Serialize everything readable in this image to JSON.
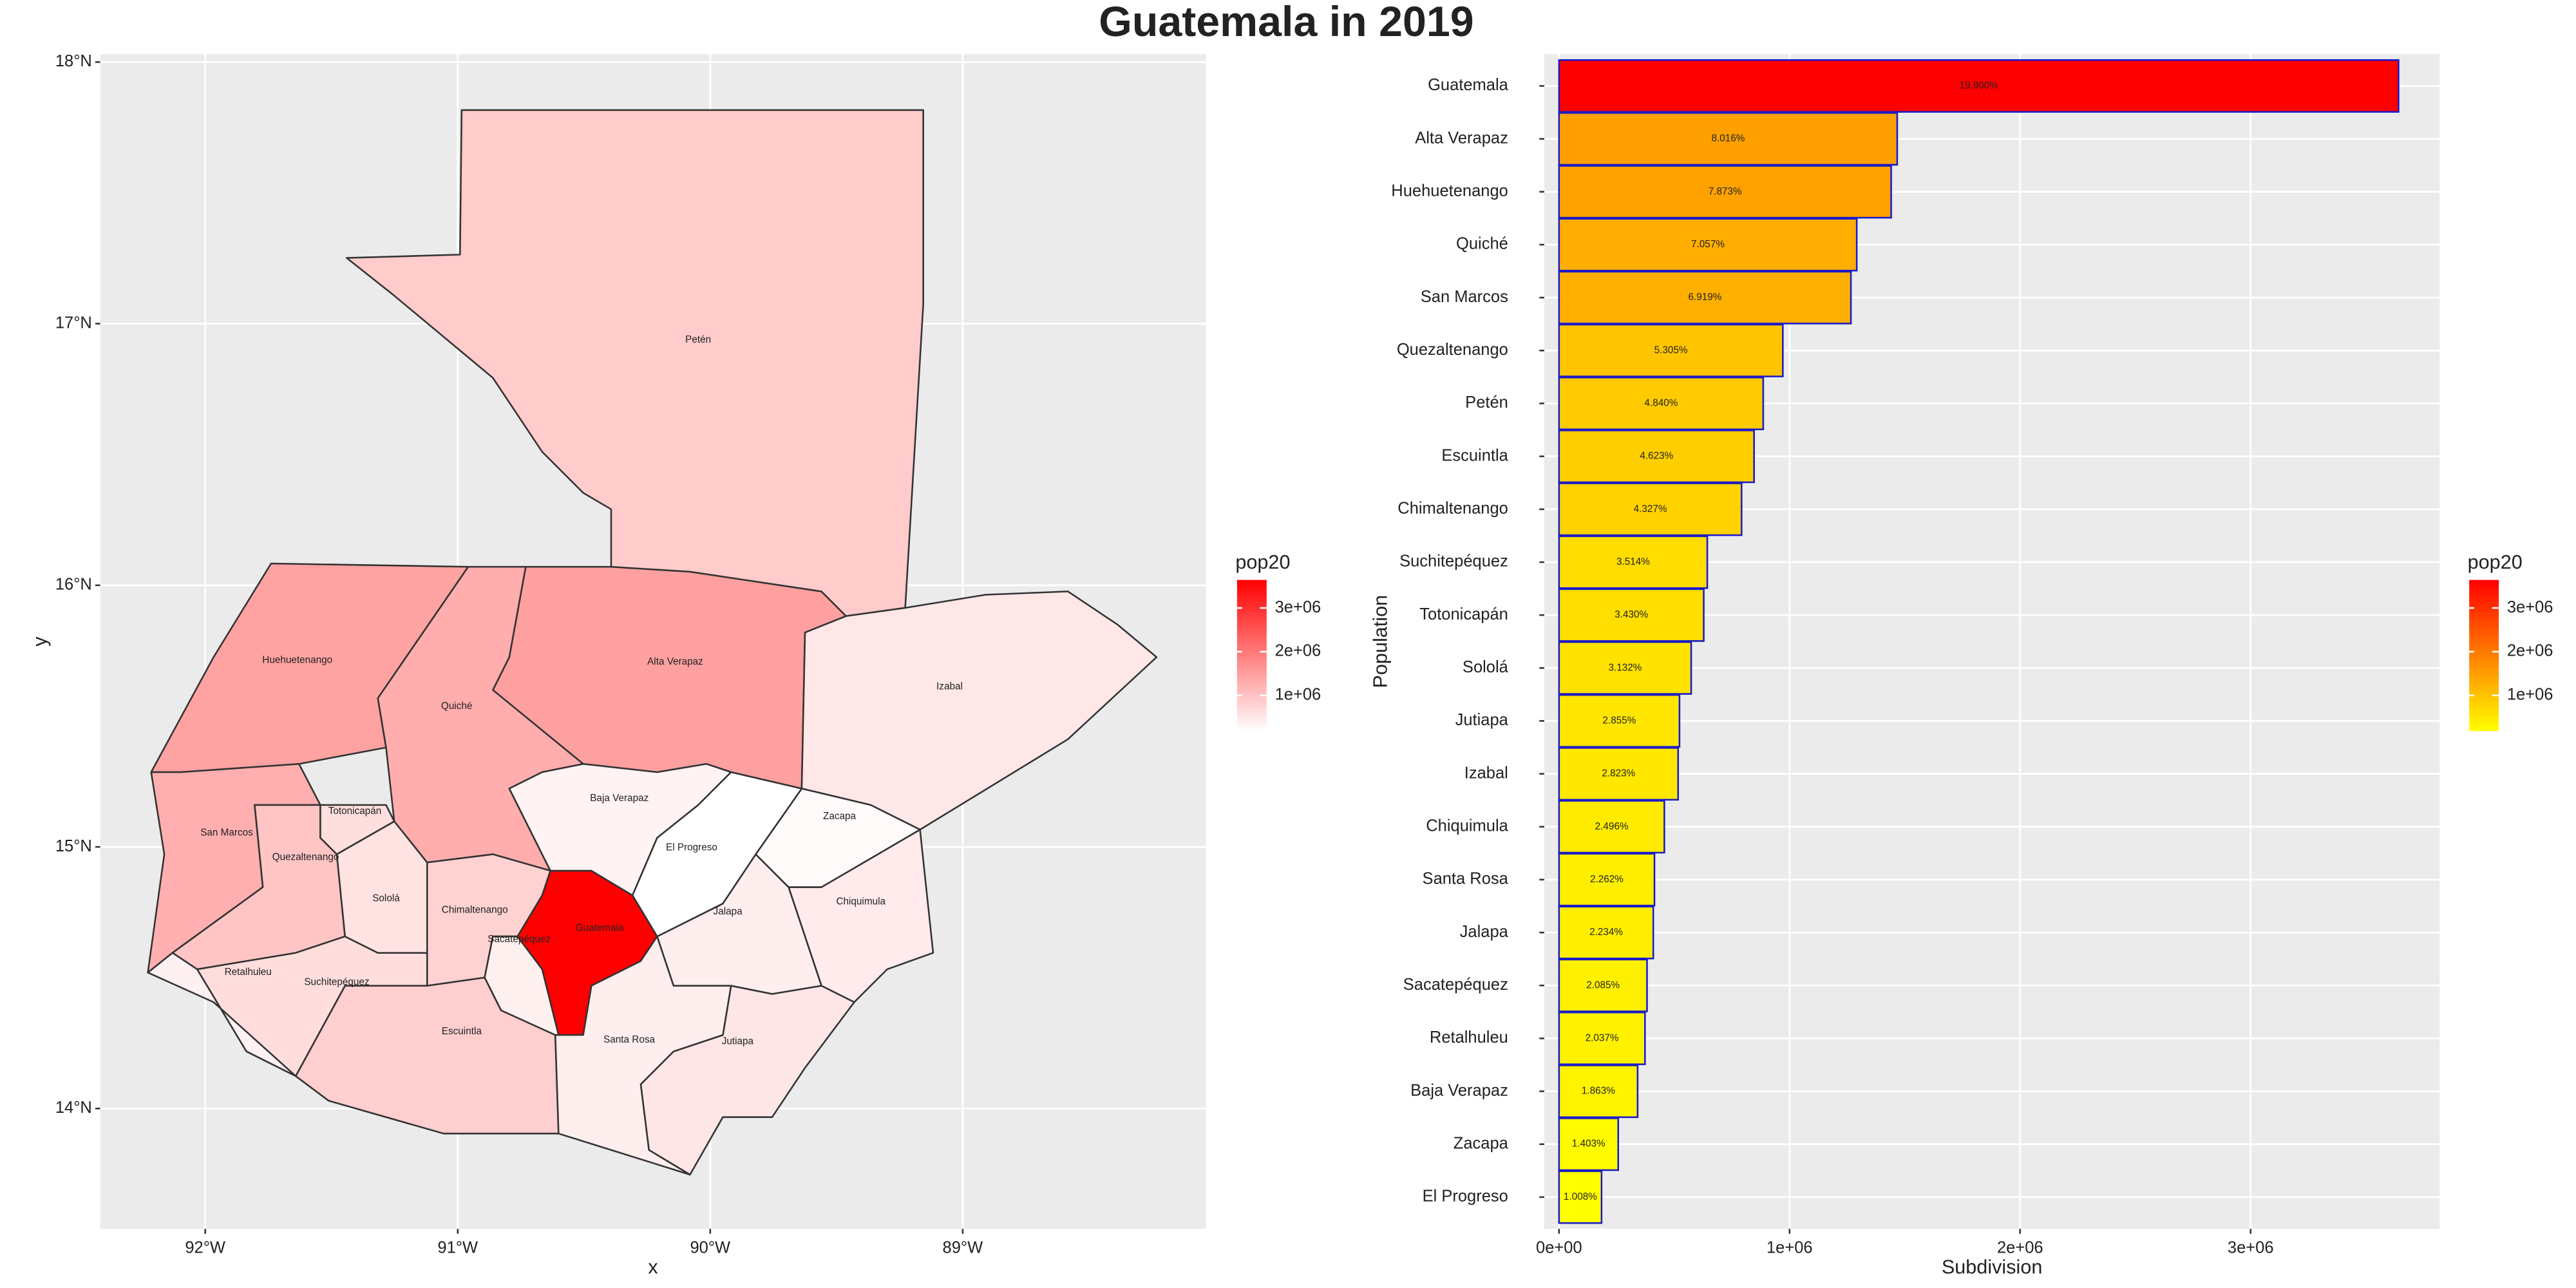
{
  "title": "Guatemala in 2019",
  "chart_data": [
    {
      "type": "map",
      "x_label": "x",
      "y_label": "y",
      "legend_title": "pop20",
      "color_low": "#FFFFFF",
      "color_high": "#FF0000",
      "border_color": "#333333",
      "regions": [
        {
          "name": "Guatemala",
          "value": 3641700
        },
        {
          "name": "Alta Verapaz",
          "value": 1466900
        },
        {
          "name": "Huehuetenango",
          "value": 1440800
        },
        {
          "name": "Quiché",
          "value": 1291400
        },
        {
          "name": "San Marcos",
          "value": 1266200
        },
        {
          "name": "Quezaltenango",
          "value": 970800
        },
        {
          "name": "Petén",
          "value": 885700
        },
        {
          "name": "Escuintla",
          "value": 846000
        },
        {
          "name": "Chimaltenango",
          "value": 791800
        },
        {
          "name": "Suchitepéquez",
          "value": 643100
        },
        {
          "name": "Totonicapán",
          "value": 627700
        },
        {
          "name": "Sololá",
          "value": 573200
        },
        {
          "name": "Jutiapa",
          "value": 522500
        },
        {
          "name": "Izabal",
          "value": 516600
        },
        {
          "name": "Chiquimula",
          "value": 456800
        },
        {
          "name": "Santa Rosa",
          "value": 413900
        },
        {
          "name": "Jalapa",
          "value": 408800
        },
        {
          "name": "Sacatepéquez",
          "value": 381600
        },
        {
          "name": "Retalhuleu",
          "value": 372800
        },
        {
          "name": "Baja Verapaz",
          "value": 340900
        },
        {
          "name": "Zacapa",
          "value": 256700
        },
        {
          "name": "El Progreso",
          "value": 184500
        }
      ],
      "xlim": [
        -92.416,
        -88.037
      ],
      "ylim": [
        13.54,
        18.03
      ],
      "xticks": [
        {
          "value": -92,
          "label": "92°W"
        },
        {
          "value": -91,
          "label": "91°W"
        },
        {
          "value": -90,
          "label": "90°W"
        },
        {
          "value": -89,
          "label": "89°W"
        }
      ],
      "yticks": [
        {
          "value": 14,
          "label": "14°N"
        },
        {
          "value": 15,
          "label": "15°N"
        },
        {
          "value": 16,
          "label": "16°N"
        },
        {
          "value": 17,
          "label": "17°N"
        },
        {
          "value": 18,
          "label": "18°N"
        }
      ],
      "legend_ticks": [
        {
          "value": 1000000,
          "label": "1e+06"
        },
        {
          "value": 2000000,
          "label": "2e+06"
        },
        {
          "value": 3000000,
          "label": "3e+06"
        }
      ]
    },
    {
      "type": "bar",
      "x_label": "Subdivision",
      "y_label": "Population",
      "legend_title": "pop20",
      "color_low": "#FFFF00",
      "color_high": "#FF0000",
      "border_color": "#1A1AC8",
      "categories": [
        "Guatemala",
        "Alta Verapaz",
        "Huehuetenango",
        "Quiché",
        "San Marcos",
        "Quezaltenango",
        "Petén",
        "Escuintla",
        "Chimaltenango",
        "Suchitepéquez",
        "Totonicapán",
        "Sololá",
        "Jutiapa",
        "Izabal",
        "Chiquimula",
        "Santa Rosa",
        "Jalapa",
        "Sacatepéquez",
        "Retalhuleu",
        "Baja Verapaz",
        "Zacapa",
        "El Progreso"
      ],
      "values": [
        3641700,
        1466900,
        1440800,
        1291400,
        1266200,
        970800,
        885700,
        846000,
        791800,
        643100,
        627700,
        573200,
        522500,
        516600,
        456800,
        413900,
        408800,
        381600,
        372800,
        340900,
        256700,
        184500
      ],
      "share_labels": [
        "19.900%",
        "8.016%",
        "7.873%",
        "7.057%",
        "6.919%",
        "5.305%",
        "4.840%",
        "4.623%",
        "4.327%",
        "3.514%",
        "3.430%",
        "3.132%",
        "2.855%",
        "2.823%",
        "2.496%",
        "2.262%",
        "2.234%",
        "2.085%",
        "2.037%",
        "1.863%",
        "1.403%",
        "1.008%"
      ],
      "xlim": [
        -64000,
        3820000
      ],
      "xticks": [
        {
          "value": 0,
          "label": "0e+00"
        },
        {
          "value": 1000000,
          "label": "1e+06"
        },
        {
          "value": 2000000,
          "label": "2e+06"
        },
        {
          "value": 3000000,
          "label": "3e+06"
        }
      ],
      "legend_ticks": [
        {
          "value": 1000000,
          "label": "1e+06"
        },
        {
          "value": 2000000,
          "label": "2e+06"
        },
        {
          "value": 3000000,
          "label": "3e+06"
        }
      ]
    }
  ]
}
